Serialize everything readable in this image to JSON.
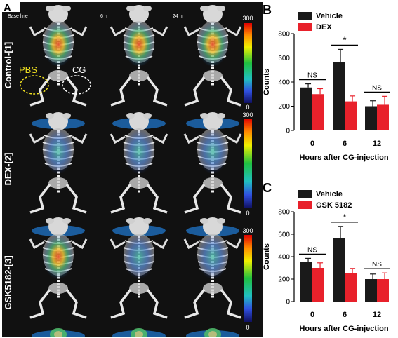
{
  "figure": {
    "panel_a": {
      "letter": "A",
      "time_labels": [
        "Base line",
        "6 h",
        "24 h"
      ],
      "row_labels": [
        "Control-[1]",
        "DEX-[2]",
        "GSK5182-[3]"
      ],
      "scale_max": "300",
      "scale_min": "0",
      "annotation_pbs": "PBS",
      "annotation_cg": "CG",
      "colors": {
        "background": "#111111",
        "pbs_ring": "#f0e020",
        "cg_ring": "#ffffff"
      }
    },
    "panel_b": {
      "letter": "B"
    },
    "panel_c": {
      "letter": "C"
    }
  },
  "chart_data": [
    {
      "type": "bar",
      "categories": [
        "0",
        "6",
        "12"
      ],
      "series": [
        {
          "name": "Vehicle",
          "values": [
            355,
            565,
            200
          ],
          "errors": [
            30,
            105,
            45
          ],
          "color": "#1a1a1a"
        },
        {
          "name": "DEX",
          "values": [
            300,
            240,
            212
          ],
          "errors": [
            45,
            45,
            70
          ],
          "color": "#e8212b"
        }
      ],
      "xlabel": "Hours after CG-injection",
      "ylabel": "Counts",
      "ylim": [
        0,
        800
      ],
      "yticks": [
        "0",
        "200",
        "400",
        "600",
        "800"
      ],
      "legend": "top-left",
      "significance": [
        "NS",
        "*",
        "NS"
      ]
    },
    {
      "type": "bar",
      "categories": [
        "0",
        "6",
        "12"
      ],
      "series": [
        {
          "name": "Vehicle",
          "values": [
            355,
            565,
            200
          ],
          "errors": [
            30,
            105,
            45
          ],
          "color": "#1a1a1a"
        },
        {
          "name": "GSK 5182",
          "values": [
            300,
            250,
            200
          ],
          "errors": [
            45,
            45,
            55
          ],
          "color": "#e8212b"
        }
      ],
      "xlabel": "Hours after CG-injection",
      "ylabel": "Counts",
      "ylim": [
        0,
        800
      ],
      "yticks": [
        "0",
        "200",
        "400",
        "600",
        "800"
      ],
      "legend": "top-left",
      "significance": [
        "NS",
        "*",
        "NS"
      ]
    }
  ]
}
